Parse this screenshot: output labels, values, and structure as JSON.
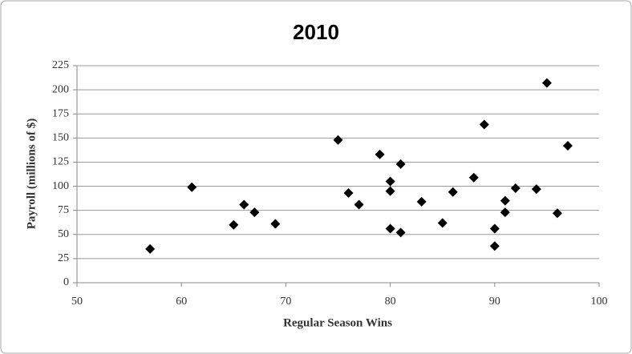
{
  "chart_data": {
    "type": "scatter",
    "title": "2010",
    "x_label": "Regular Season Wins",
    "y_label": "Payroll (millions of $)",
    "x": [
      57,
      61,
      65,
      66,
      67,
      69,
      75,
      76,
      77,
      79,
      80,
      80,
      80,
      81,
      81,
      83,
      85,
      86,
      88,
      89,
      90,
      90,
      91,
      91,
      92,
      94,
      95,
      96,
      97
    ],
    "values": [
      35,
      99,
      60,
      81,
      73,
      61,
      148,
      93,
      81,
      133,
      105,
      95,
      56,
      123,
      52,
      84,
      62,
      94,
      109,
      164,
      56,
      38,
      85,
      73,
      98,
      97,
      207,
      72,
      142
    ],
    "color": "#000000",
    "xlim": [
      50,
      100
    ],
    "xticks": [
      50,
      60,
      70,
      80,
      90,
      100
    ],
    "ylim": [
      0,
      225
    ],
    "yticks": [
      0,
      25,
      50,
      75,
      100,
      125,
      150,
      175,
      200,
      225
    ],
    "grid": true
  }
}
